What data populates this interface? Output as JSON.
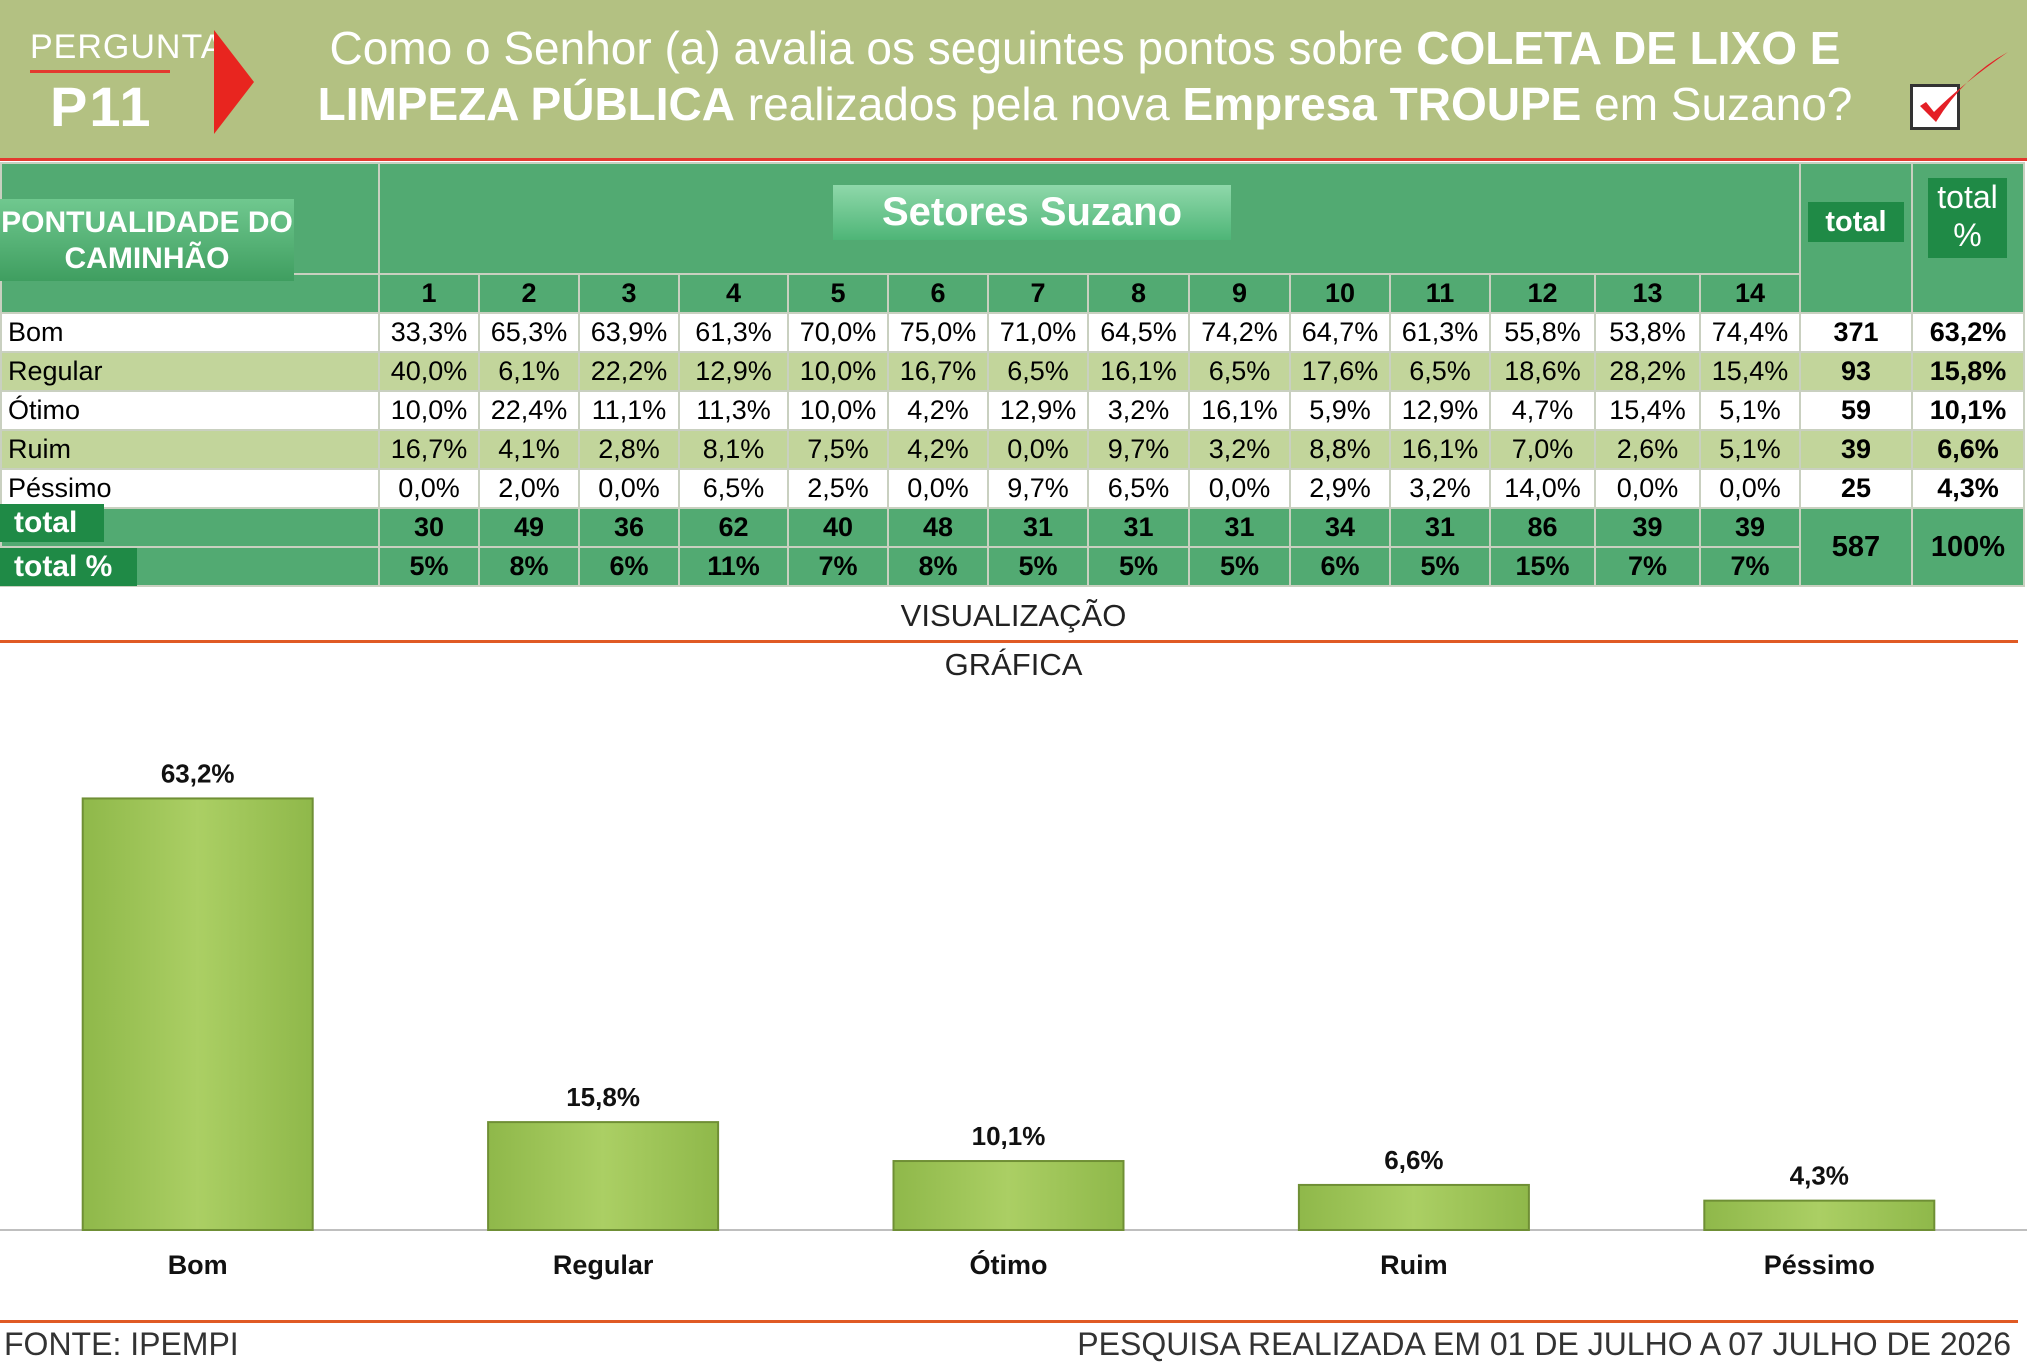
{
  "header": {
    "question_label": "PERGUNTA",
    "question_code": "P11",
    "title_parts": [
      {
        "text": "Como o Senhor (a) avalia os seguintes pontos sobre ",
        "bold": false
      },
      {
        "text": "COLETA DE LIXO E LIMPEZA PÚBLICA",
        "bold": true
      },
      {
        "text": " realizados pela nova ",
        "bold": false
      },
      {
        "text": "Empresa TROUPE",
        "bold": true
      },
      {
        "text": " em Suzano?",
        "bold": false
      }
    ]
  },
  "table": {
    "topic": "PONTUALIDADE DO CAMINHÃO",
    "group_header": "Setores Suzano",
    "total_header": "total",
    "total_pct_header": "total %",
    "sectors": [
      "1",
      "2",
      "3",
      "4",
      "5",
      "6",
      "7",
      "8",
      "9",
      "10",
      "11",
      "12",
      "13",
      "14"
    ],
    "rows": [
      {
        "label": "Bom",
        "values": [
          "33,3%",
          "65,3%",
          "63,9%",
          "61,3%",
          "70,0%",
          "75,0%",
          "71,0%",
          "64,5%",
          "74,2%",
          "64,7%",
          "61,3%",
          "55,8%",
          "53,8%",
          "74,4%"
        ],
        "total": "371",
        "total_pct": "63,2%"
      },
      {
        "label": "Regular",
        "values": [
          "40,0%",
          "6,1%",
          "22,2%",
          "12,9%",
          "10,0%",
          "16,7%",
          "6,5%",
          "16,1%",
          "6,5%",
          "17,6%",
          "6,5%",
          "18,6%",
          "28,2%",
          "15,4%"
        ],
        "total": "93",
        "total_pct": "15,8%"
      },
      {
        "label": "Ótimo",
        "values": [
          "10,0%",
          "22,4%",
          "11,1%",
          "11,3%",
          "10,0%",
          "4,2%",
          "12,9%",
          "3,2%",
          "16,1%",
          "5,9%",
          "12,9%",
          "4,7%",
          "15,4%",
          "5,1%"
        ],
        "total": "59",
        "total_pct": "10,1%"
      },
      {
        "label": "Ruim",
        "values": [
          "16,7%",
          "4,1%",
          "2,8%",
          "8,1%",
          "7,5%",
          "4,2%",
          "0,0%",
          "9,7%",
          "3,2%",
          "8,8%",
          "16,1%",
          "7,0%",
          "2,6%",
          "5,1%"
        ],
        "total": "39",
        "total_pct": "6,6%"
      },
      {
        "label": "Péssimo",
        "values": [
          "0,0%",
          "2,0%",
          "0,0%",
          "6,5%",
          "2,5%",
          "0,0%",
          "9,7%",
          "6,5%",
          "0,0%",
          "2,9%",
          "3,2%",
          "14,0%",
          "0,0%",
          "0,0%"
        ],
        "total": "25",
        "total_pct": "4,3%"
      }
    ],
    "footer": {
      "total_label": "total",
      "total_values": [
        "30",
        "49",
        "36",
        "62",
        "40",
        "48",
        "31",
        "31",
        "31",
        "34",
        "31",
        "86",
        "39",
        "39"
      ],
      "pct_label": "total %",
      "pct_values": [
        "5%",
        "8%",
        "6%",
        "11%",
        "7%",
        "8%",
        "5%",
        "5%",
        "5%",
        "6%",
        "5%",
        "15%",
        "7%",
        "7%"
      ],
      "grand_total": "587",
      "grand_pct": "100%"
    }
  },
  "visual_title_1": "VISUALIZAÇÃO",
  "visual_title_2": "GRÁFICA",
  "chart_data": {
    "type": "bar",
    "title": "",
    "xlabel": "",
    "ylabel": "",
    "categories": [
      "Bom",
      "Regular",
      "Ótimo",
      "Ruim",
      "Péssimo"
    ],
    "values": [
      63.2,
      15.8,
      10.1,
      6.6,
      4.3
    ],
    "data_labels": [
      "63,2%",
      "15,8%",
      "10,1%",
      "6,6%",
      "4,3%"
    ],
    "ylim": [
      0,
      70
    ],
    "grid": false,
    "legend": "none",
    "bar_color": "#a2c65c"
  },
  "footer": {
    "source": "FONTE: IPEMPI",
    "period": "PESQUISA REALIZADA EM 01 DE JULHO A 07 JULHO DE 2026"
  }
}
